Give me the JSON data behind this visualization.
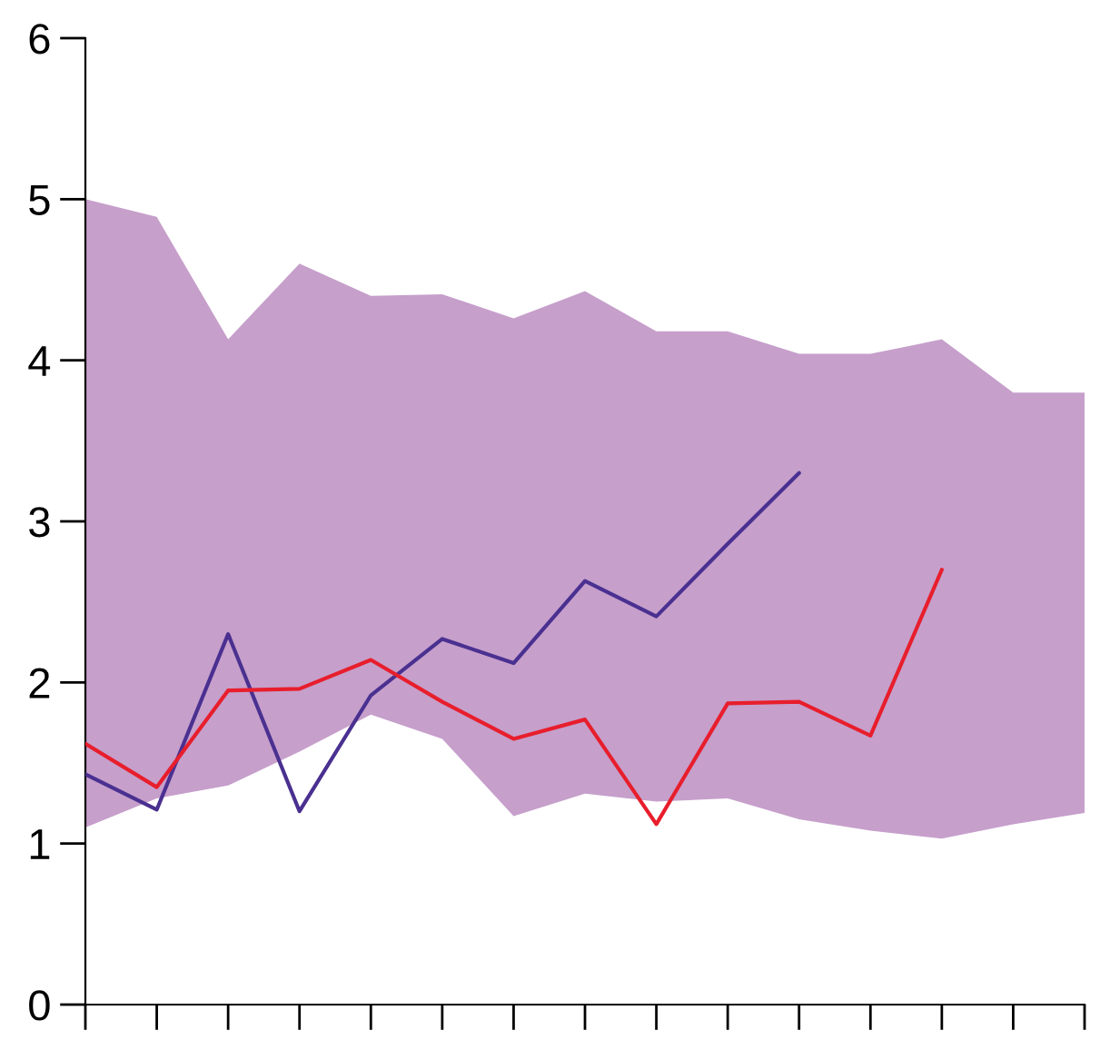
{
  "chart_data": {
    "type": "line",
    "categories": [
      null,
      null,
      null,
      null,
      null,
      null,
      null,
      null,
      null,
      null,
      null,
      null,
      null,
      null,
      null
    ],
    "series": [
      {
        "type": "area",
        "color": "#c69fcb",
        "values": [
          null,
          null,
          null,
          null,
          null,
          null,
          null,
          null,
          null,
          null,
          null,
          null,
          null,
          null,
          null
        ],
        "lower": [
          1.1,
          1.28,
          1.36,
          1.57,
          1.8,
          1.65,
          1.17,
          1.31,
          1.26,
          1.28,
          1.15,
          1.08,
          1.03,
          1.12,
          1.19
        ],
        "upper": [
          5.0,
          4.89,
          4.13,
          4.6,
          4.4,
          4.41,
          4.26,
          4.43,
          4.18,
          4.18,
          4.04,
          4.04,
          4.13,
          3.8,
          3.8
        ]
      },
      {
        "color": "#4a3090",
        "values": [
          1.43,
          1.21,
          2.3,
          1.2,
          1.92,
          2.27,
          2.12,
          2.63,
          2.41,
          2.86,
          3.3,
          null,
          null,
          null,
          null
        ]
      },
      {
        "color": "#e81e2c",
        "values": [
          1.62,
          1.35,
          1.95,
          1.96,
          2.14,
          1.88,
          1.65,
          1.77,
          1.12,
          1.87,
          1.88,
          1.67,
          2.7,
          null,
          null
        ]
      }
    ],
    "ylim": [
      0,
      6
    ],
    "yticks": [
      0,
      1,
      2,
      3,
      4,
      5,
      6
    ],
    "tick_labels": "y",
    "grid": false,
    "legend": false,
    "line_style": "solid"
  }
}
